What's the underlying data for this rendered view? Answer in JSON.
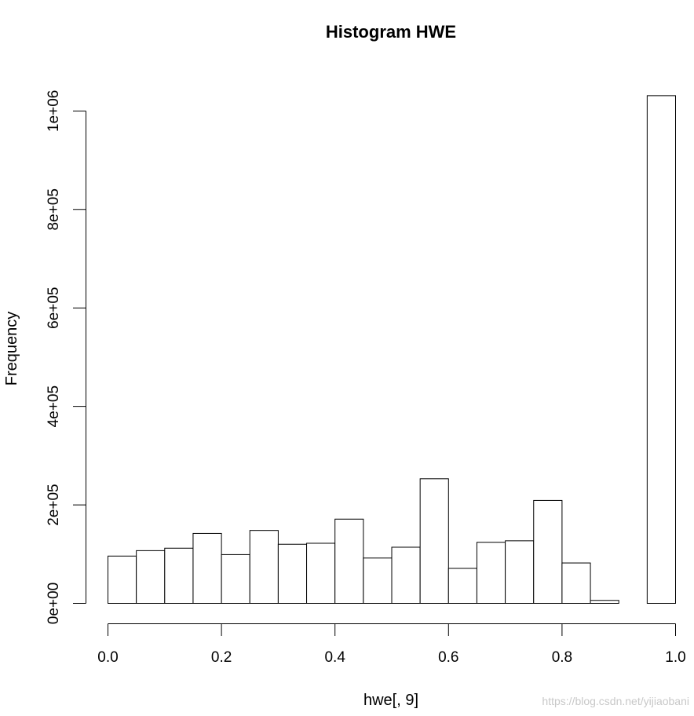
{
  "chart_data": {
    "type": "bar",
    "title": "Histogram HWE",
    "xlabel": "hwe[, 9]",
    "ylabel": "Frequency",
    "xlim": [
      0,
      1
    ],
    "ylim": [
      0,
      1030000
    ],
    "bin_width": 0.05,
    "bin_edges": [
      0.0,
      0.05,
      0.1,
      0.15,
      0.2,
      0.25,
      0.3,
      0.35,
      0.4,
      0.45,
      0.5,
      0.55,
      0.6,
      0.65,
      0.7,
      0.75,
      0.8,
      0.85,
      0.9,
      0.95,
      1.0
    ],
    "values": [
      96000,
      107000,
      112000,
      142000,
      99000,
      148000,
      120000,
      122000,
      171000,
      92000,
      114000,
      253000,
      71000,
      124000,
      127000,
      209000,
      82000,
      6000,
      0,
      1031000
    ],
    "x_ticks": [
      0.0,
      0.2,
      0.4,
      0.6,
      0.8,
      1.0
    ],
    "x_tick_labels": [
      "0.0",
      "0.2",
      "0.4",
      "0.6",
      "0.8",
      "1.0"
    ],
    "y_ticks": [
      0,
      200000,
      400000,
      600000,
      800000,
      1000000
    ],
    "y_tick_labels": [
      "0e+00",
      "2e+05",
      "4e+05",
      "6e+05",
      "8e+05",
      "1e+06"
    ],
    "grid": false,
    "fill_color": "#ffffff",
    "stroke_color": "#000000"
  },
  "watermark": "https://blog.csdn.net/yijiaobani"
}
